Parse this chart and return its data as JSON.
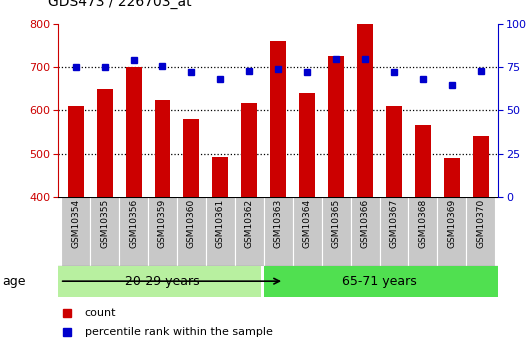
{
  "title": "GDS473 / 226703_at",
  "samples": [
    "GSM10354",
    "GSM10355",
    "GSM10356",
    "GSM10359",
    "GSM10360",
    "GSM10361",
    "GSM10362",
    "GSM10363",
    "GSM10364",
    "GSM10365",
    "GSM10366",
    "GSM10367",
    "GSM10368",
    "GSM10369",
    "GSM10370"
  ],
  "counts": [
    610,
    650,
    700,
    625,
    580,
    492,
    618,
    760,
    640,
    725,
    800,
    610,
    567,
    490,
    540
  ],
  "percentiles": [
    75,
    75,
    79,
    76,
    72,
    68,
    73,
    74,
    72,
    80,
    80,
    72,
    68,
    65,
    73
  ],
  "group1_label": "20-29 years",
  "group2_label": "65-71 years",
  "group1_count": 7,
  "group2_count": 8,
  "ylim_left": [
    400,
    800
  ],
  "ylim_right": [
    0,
    100
  ],
  "yticks_left": [
    400,
    500,
    600,
    700,
    800
  ],
  "yticks_right": [
    0,
    25,
    50,
    75,
    100
  ],
  "bar_color": "#cc0000",
  "dot_color": "#0000cc",
  "group1_bg": "#b8f0a0",
  "group2_bg": "#50e050",
  "tick_bg": "#c8c8c8",
  "legend_count_label": "count",
  "legend_pct_label": "percentile rank within the sample",
  "age_label": "age"
}
